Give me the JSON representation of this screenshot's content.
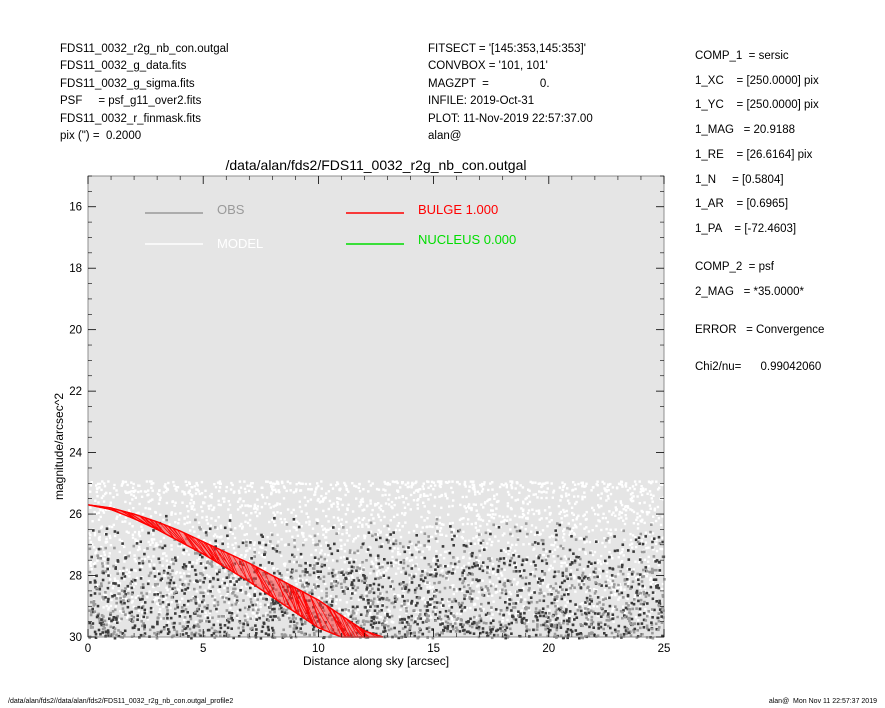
{
  "header_left": [
    "FDS11_0032_r2g_nb_con.outgal",
    "FDS11_0032_g_data.fits",
    "FDS11_0032_g_sigma.fits",
    "PSF     = psf_g11_over2.fits",
    "FDS11_0032_r_finmask.fits",
    "pix (\") =  0.2000"
  ],
  "header_mid": [
    "FITSECT = '[145:353,145:353]'",
    "CONVBOX = '101, 101'",
    "MAGZPT  =                0.",
    "INFILE: 2019-Oct-31",
    "PLOT: 11-Nov-2019 22:57:37.00",
    "alan@"
  ],
  "params": [
    "COMP_1  = sersic",
    "1_XC    = [250.0000] pix",
    "1_YC    = [250.0000] pix",
    "1_MAG   = 20.9188",
    "1_RE    = [26.6164] pix",
    "1_N     = [0.5804]",
    "1_AR    = [0.6965]",
    "1_PA    = [-72.4603]",
    "COMP_2  = psf",
    "2_MAG   = *35.0000*",
    "ERROR   = Convergence",
    "Chi2/nu=      0.99042060"
  ],
  "footer_left": "/data/alan/fds2//data/alan/fds2/FDS11_0032_r2g_nb_con.outgal_profile2",
  "footer_right": "alan@  Mon Nov 11 22:57:37 2019",
  "chart_data": {
    "type": "scatter",
    "title": "/data/alan/fds2/FDS11_0032_r2g_nb_con.outgal",
    "xlabel": "Distance along sky [arcsec]",
    "ylabel": "magnitude/arcsec^2",
    "xlim": [
      0,
      25
    ],
    "ylim": [
      30,
      15
    ],
    "y_inverted": true,
    "x_ticks": [
      0,
      5,
      10,
      15,
      20,
      25
    ],
    "y_ticks": [
      16,
      18,
      20,
      22,
      24,
      26,
      28,
      30
    ],
    "grid": false,
    "background_color": "#e5e5e5",
    "legend": [
      {
        "label": "OBS",
        "color": "#9a9a9a"
      },
      {
        "label": "MODEL",
        "color": "#ffffff"
      },
      {
        "label": "BULGE  1.000",
        "color": "#ff0000"
      },
      {
        "label": "NUCLEUS  0.000",
        "color": "#00dd00"
      }
    ],
    "series": [
      {
        "name": "BULGE  1.000",
        "color": "#ff0000",
        "band_x": [
          0,
          1,
          2,
          3,
          4,
          5,
          6,
          7,
          8,
          9,
          10,
          11,
          12,
          12.8
        ],
        "band_upper": [
          25.7,
          25.8,
          26.0,
          26.25,
          26.55,
          26.9,
          27.25,
          27.6,
          28.0,
          28.4,
          28.8,
          29.3,
          29.8,
          30.0
        ],
        "band_lower": [
          25.7,
          25.85,
          26.15,
          26.5,
          26.9,
          27.3,
          27.75,
          28.2,
          28.7,
          29.2,
          29.7,
          30.0,
          30.0,
          30.0
        ]
      },
      {
        "name": "MODEL",
        "color": "#ffffff",
        "x_range": [
          0,
          25
        ],
        "y_range": [
          24.9,
          29.5
        ]
      },
      {
        "name": "OBS",
        "colors": [
          "#9a9a9a",
          "#3c3c3c",
          "#ffffff"
        ],
        "x_range": [
          0,
          25
        ],
        "y_range": [
          25.4,
          30.0
        ]
      }
    ]
  }
}
